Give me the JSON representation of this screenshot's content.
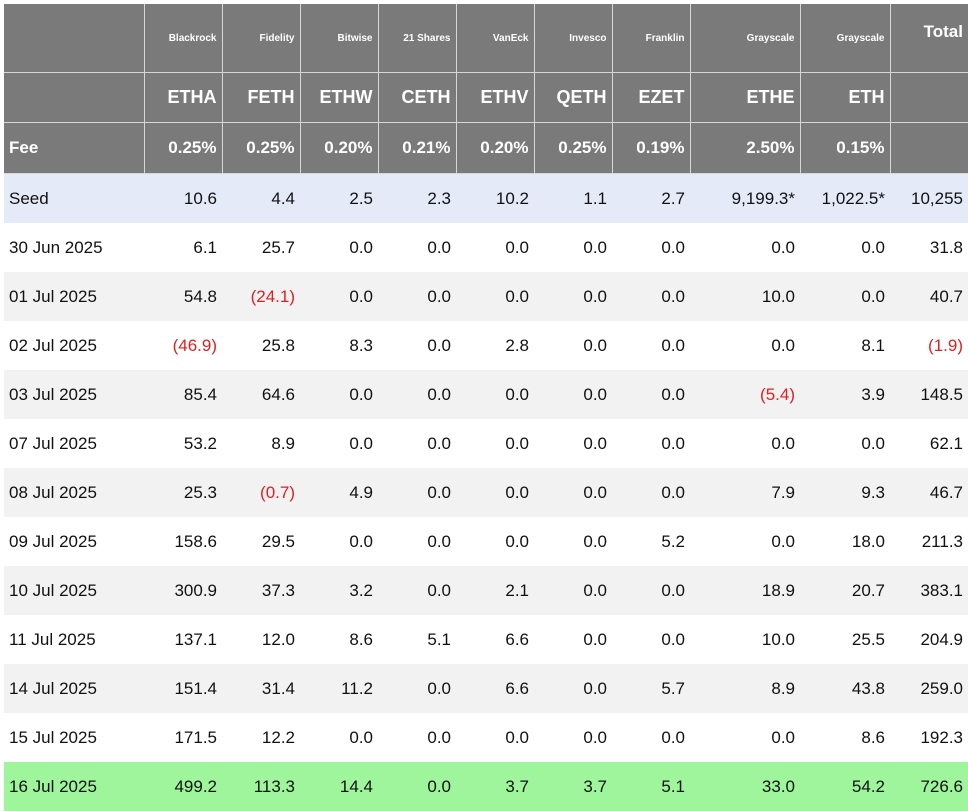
{
  "funds": [
    {
      "issuer": "Blackrock",
      "ticker": "ETHA",
      "fee": "0.25%"
    },
    {
      "issuer": "Fidelity",
      "ticker": "FETH",
      "fee": "0.25%"
    },
    {
      "issuer": "Bitwise",
      "ticker": "ETHW",
      "fee": "0.20%"
    },
    {
      "issuer": "21 Shares",
      "ticker": "CETH",
      "fee": "0.21%"
    },
    {
      "issuer": "VanEck",
      "ticker": "ETHV",
      "fee": "0.20%"
    },
    {
      "issuer": "Invesco",
      "ticker": "QETH",
      "fee": "0.25%"
    },
    {
      "issuer": "Franklin",
      "ticker": "EZET",
      "fee": "0.19%"
    },
    {
      "issuer": "Grayscale",
      "ticker": "ETHE",
      "fee": "2.50%"
    },
    {
      "issuer": "Grayscale",
      "ticker": "ETH",
      "fee": "0.15%"
    }
  ],
  "total_label": "Total",
  "fee_label": "Fee",
  "rows": [
    {
      "date": "Seed",
      "values": [
        "10.6",
        "4.4",
        "2.5",
        "2.3",
        "10.2",
        "1.1",
        "2.7",
        "9,199.3*",
        "1,022.5*"
      ],
      "total": "10,255"
    },
    {
      "date": "30 Jun 2025",
      "values": [
        "6.1",
        "25.7",
        "0.0",
        "0.0",
        "0.0",
        "0.0",
        "0.0",
        "0.0",
        "0.0"
      ],
      "total": "31.8"
    },
    {
      "date": "01 Jul 2025",
      "values": [
        "54.8",
        "(24.1)",
        "0.0",
        "0.0",
        "0.0",
        "0.0",
        "0.0",
        "10.0",
        "0.0"
      ],
      "total": "40.7"
    },
    {
      "date": "02 Jul 2025",
      "values": [
        "(46.9)",
        "25.8",
        "8.3",
        "0.0",
        "2.8",
        "0.0",
        "0.0",
        "0.0",
        "8.1"
      ],
      "total": "(1.9)"
    },
    {
      "date": "03 Jul 2025",
      "values": [
        "85.4",
        "64.6",
        "0.0",
        "0.0",
        "0.0",
        "0.0",
        "0.0",
        "(5.4)",
        "3.9"
      ],
      "total": "148.5"
    },
    {
      "date": "07 Jul 2025",
      "values": [
        "53.2",
        "8.9",
        "0.0",
        "0.0",
        "0.0",
        "0.0",
        "0.0",
        "0.0",
        "0.0"
      ],
      "total": "62.1"
    },
    {
      "date": "08 Jul 2025",
      "values": [
        "25.3",
        "(0.7)",
        "4.9",
        "0.0",
        "0.0",
        "0.0",
        "0.0",
        "7.9",
        "9.3"
      ],
      "total": "46.7"
    },
    {
      "date": "09 Jul 2025",
      "values": [
        "158.6",
        "29.5",
        "0.0",
        "0.0",
        "0.0",
        "0.0",
        "5.2",
        "0.0",
        "18.0"
      ],
      "total": "211.3"
    },
    {
      "date": "10 Jul 2025",
      "values": [
        "300.9",
        "37.3",
        "3.2",
        "0.0",
        "2.1",
        "0.0",
        "0.0",
        "18.9",
        "20.7"
      ],
      "total": "383.1"
    },
    {
      "date": "11 Jul 2025",
      "values": [
        "137.1",
        "12.0",
        "8.6",
        "5.1",
        "6.6",
        "0.0",
        "0.0",
        "10.0",
        "25.5"
      ],
      "total": "204.9"
    },
    {
      "date": "14 Jul 2025",
      "values": [
        "151.4",
        "31.4",
        "11.2",
        "0.0",
        "6.6",
        "0.0",
        "5.7",
        "8.9",
        "43.8"
      ],
      "total": "259.0"
    },
    {
      "date": "15 Jul 2025",
      "values": [
        "171.5",
        "12.2",
        "0.0",
        "0.0",
        "0.0",
        "0.0",
        "0.0",
        "0.0",
        "8.6"
      ],
      "total": "192.3"
    },
    {
      "date": "16 Jul 2025",
      "values": [
        "499.2",
        "113.3",
        "14.4",
        "0.0",
        "3.7",
        "3.7",
        "5.1",
        "33.0",
        "54.2"
      ],
      "total": "726.6"
    }
  ],
  "colors": {
    "header_bg": "#7a7a7a",
    "header_text": "#ffffff",
    "seed_row_bg": "#e4eaf7",
    "alt_row_bg": "#f2f2f2",
    "latest_row_bg": "#9ef59c",
    "negative_text": "#e02020"
  }
}
